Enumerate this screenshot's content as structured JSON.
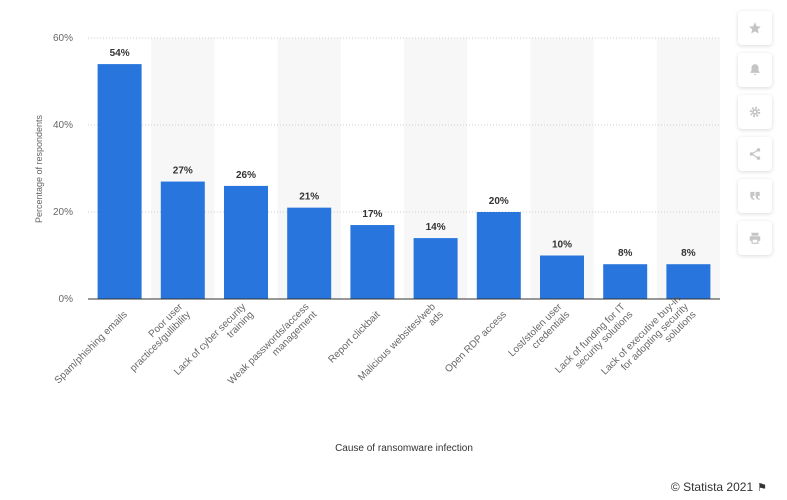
{
  "chart_data": {
    "type": "bar",
    "categories": [
      "Spam/phishing emails",
      "Poor user practices/gullibility",
      "Lack of cyber security training",
      "Weak passwords/access management",
      "Report clickbait",
      "Malicious websites/web ads",
      "Open RDP access",
      "Lost/stolen user credentials",
      "Lack of funding for IT security solutions",
      "Lack of executive buy-in for adopting security solutions"
    ],
    "category_lines": [
      [
        "Spam/phishing emails"
      ],
      [
        "Poor user",
        "practices/gullibility"
      ],
      [
        "Lack of cyber security",
        "training"
      ],
      [
        "Weak passwords/access",
        "management"
      ],
      [
        "Report clickbait"
      ],
      [
        "Malicious websites/web",
        "ads"
      ],
      [
        "Open RDP access"
      ],
      [
        "Lost/stolen user",
        "credentials"
      ],
      [
        "Lack of funding for IT",
        "security solutions"
      ],
      [
        "Lack of executive buy-in",
        "for adopting security",
        "solutions"
      ]
    ],
    "values": [
      54,
      27,
      26,
      21,
      17,
      14,
      20,
      10,
      8,
      8
    ],
    "data_labels": [
      "54%",
      "27%",
      "26%",
      "21%",
      "17%",
      "14%",
      "20%",
      "10%",
      "8%",
      "8%"
    ],
    "xlabel": "Cause of ransomware infection",
    "ylabel": "Percentage of respondents",
    "yticks": [
      0,
      20,
      40,
      60
    ],
    "ytick_labels": [
      "0%",
      "20%",
      "40%",
      "60%"
    ],
    "ylim": [
      0,
      60
    ],
    "grid": true,
    "bar_color": "#2876dd",
    "band_color": "#f7f7f7"
  },
  "toolbar": {
    "icons": [
      "star-icon",
      "bell-icon",
      "gear-icon",
      "share-icon",
      "quote-icon",
      "print-icon"
    ]
  },
  "credit": {
    "text": "© Statista 2021",
    "flag": "⚑"
  }
}
